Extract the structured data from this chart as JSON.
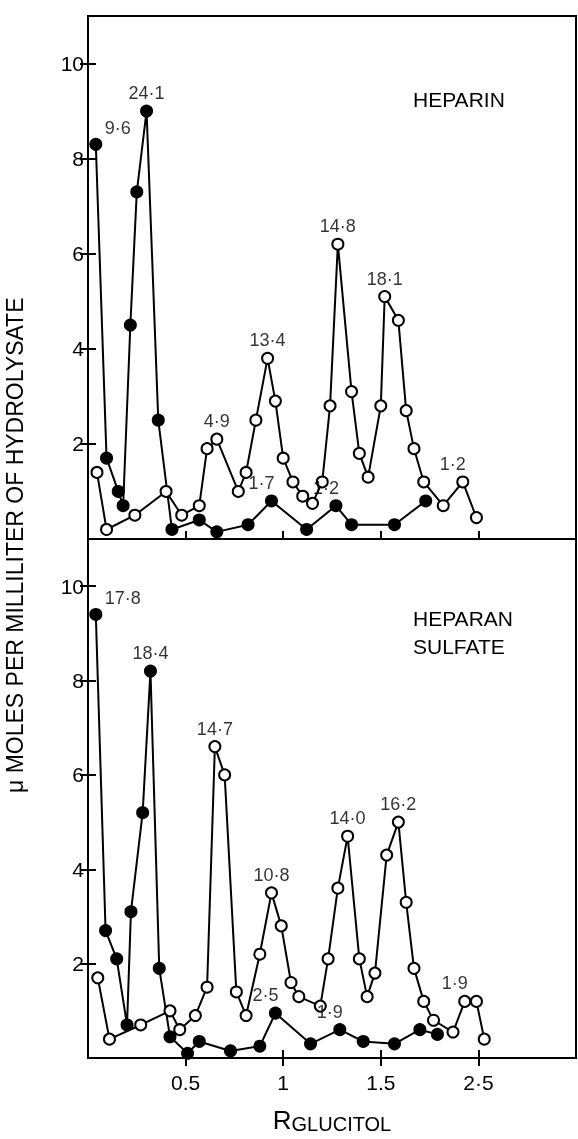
{
  "chart_data": [
    {
      "type": "line",
      "title": "HEPARIN",
      "ylabel": "μ MOLES PER MILLILITER OF HYDROLYSATE",
      "marker": "circle",
      "tick_labels": "y",
      "xlim": [
        0,
        2.5
      ],
      "xticks": [
        0.5,
        1.0,
        1.5,
        {
          "value": 2.0,
          "label": null
        }
      ],
      "ylim": [
        0,
        11
      ],
      "yticks": [
        2,
        4,
        6,
        8,
        10
      ],
      "series": [
        {
          "color": "#000000",
          "x": [
            0.04,
            0.095,
            0.155,
            0.18,
            0.217,
            0.25,
            0.3,
            0.36,
            0.43,
            0.57,
            0.66,
            0.82,
            0.94,
            1.12,
            1.27,
            1.35,
            1.57,
            1.73
          ],
          "values": [
            8.3,
            1.7,
            1.0,
            0.7,
            4.5,
            7.3,
            9.0,
            2.5,
            0.2,
            0.4,
            0.15,
            0.3,
            0.8,
            0.2,
            0.7,
            0.3,
            0.3,
            0.8
          ]
        },
        {
          "color": "#ffffff",
          "x": [
            0.046,
            0.095,
            0.24,
            0.4,
            0.48,
            0.57,
            0.61,
            0.66,
            0.77,
            0.81,
            0.86,
            0.92,
            0.96,
            1.0,
            1.05,
            1.1,
            1.15,
            1.2,
            1.24,
            1.28,
            1.35,
            1.39,
            1.435,
            1.5,
            1.52,
            1.59,
            1.63,
            1.67,
            1.72,
            1.82,
            1.92,
            1.99
          ],
          "values": [
            1.4,
            0.2,
            0.5,
            1.0,
            0.5,
            0.7,
            1.9,
            2.1,
            1.0,
            1.4,
            2.5,
            3.8,
            2.9,
            1.7,
            1.2,
            0.9,
            0.75,
            1.2,
            2.8,
            6.2,
            3.1,
            1.8,
            1.3,
            2.8,
            5.1,
            4.6,
            2.7,
            1.9,
            1.2,
            0.7,
            1.2,
            0.45
          ]
        }
      ],
      "annotations": [
        {
          "text": "9·6",
          "x": 0.04,
          "y": 8.3
        },
        {
          "text": "24·1",
          "x": 0.3,
          "y": 9.0
        },
        {
          "text": "4·9",
          "x": 0.66,
          "y": 2.1
        },
        {
          "text": "13·4",
          "x": 0.92,
          "y": 3.8
        },
        {
          "text": "14·8",
          "x": 1.28,
          "y": 6.2
        },
        {
          "text": "18·1",
          "x": 1.52,
          "y": 5.1
        },
        {
          "text": "1·7",
          "x": 0.94,
          "y": 0.8
        },
        {
          "text": "1·2",
          "x": 1.27,
          "y": 0.7
        },
        {
          "text": "1·2",
          "x": 1.92,
          "y": 1.2
        }
      ]
    },
    {
      "type": "line",
      "title": "HEPARAN SULFATE",
      "xlabel": "R$_{GLUCITOL}$",
      "marker": "circle",
      "xlim": [
        0,
        2.5
      ],
      "xticks": [
        0.5,
        1.0,
        1.5,
        {
          "value": 2.0,
          "label": "2·5"
        }
      ],
      "ylim": [
        0,
        11
      ],
      "yticks": [
        2,
        4,
        6,
        8,
        10
      ],
      "series": [
        {
          "color": "#000000",
          "x": [
            0.04,
            0.09,
            0.147,
            0.2,
            0.22,
            0.28,
            0.32,
            0.365,
            0.42,
            0.51,
            0.57,
            0.73,
            0.88,
            0.96,
            1.14,
            1.29,
            1.41,
            1.57,
            1.7,
            1.79
          ],
          "values": [
            9.4,
            2.7,
            2.1,
            0.7,
            3.1,
            5.2,
            8.2,
            1.9,
            0.45,
            0.1,
            0.35,
            0.15,
            0.25,
            0.95,
            0.3,
            0.6,
            0.35,
            0.3,
            0.6,
            0.5
          ]
        },
        {
          "color": "#ffffff",
          "x": [
            0.05,
            0.11,
            0.27,
            0.42,
            0.47,
            0.55,
            0.61,
            0.65,
            0.7,
            0.76,
            0.81,
            0.88,
            0.94,
            0.99,
            1.04,
            1.08,
            1.19,
            1.23,
            1.28,
            1.33,
            1.39,
            1.43,
            1.47,
            1.53,
            1.59,
            1.63,
            1.67,
            1.72,
            1.77,
            1.87,
            1.93,
            1.99,
            2.03
          ],
          "values": [
            1.7,
            0.4,
            0.7,
            1.0,
            0.6,
            0.9,
            1.5,
            6.6,
            6.0,
            1.4,
            0.9,
            2.2,
            3.5,
            2.8,
            1.6,
            1.3,
            1.1,
            2.1,
            3.6,
            4.7,
            2.1,
            1.3,
            1.8,
            4.3,
            5.0,
            3.3,
            1.9,
            1.2,
            0.8,
            0.55,
            1.2,
            1.2,
            0.4
          ]
        }
      ],
      "annotations": [
        {
          "text": "17·8",
          "x": 0.04,
          "y": 9.4
        },
        {
          "text": "18·4",
          "x": 0.32,
          "y": 8.2
        },
        {
          "text": "14·7",
          "x": 0.65,
          "y": 6.6
        },
        {
          "text": "10·8",
          "x": 0.94,
          "y": 3.5
        },
        {
          "text": "14·0",
          "x": 1.33,
          "y": 4.7
        },
        {
          "text": "16·2",
          "x": 1.59,
          "y": 5.0
        },
        {
          "text": "2·5",
          "x": 0.96,
          "y": 0.95
        },
        {
          "text": "1·9",
          "x": 1.29,
          "y": 0.6
        },
        {
          "text": "1·9",
          "x": 1.93,
          "y": 1.2
        }
      ]
    }
  ]
}
